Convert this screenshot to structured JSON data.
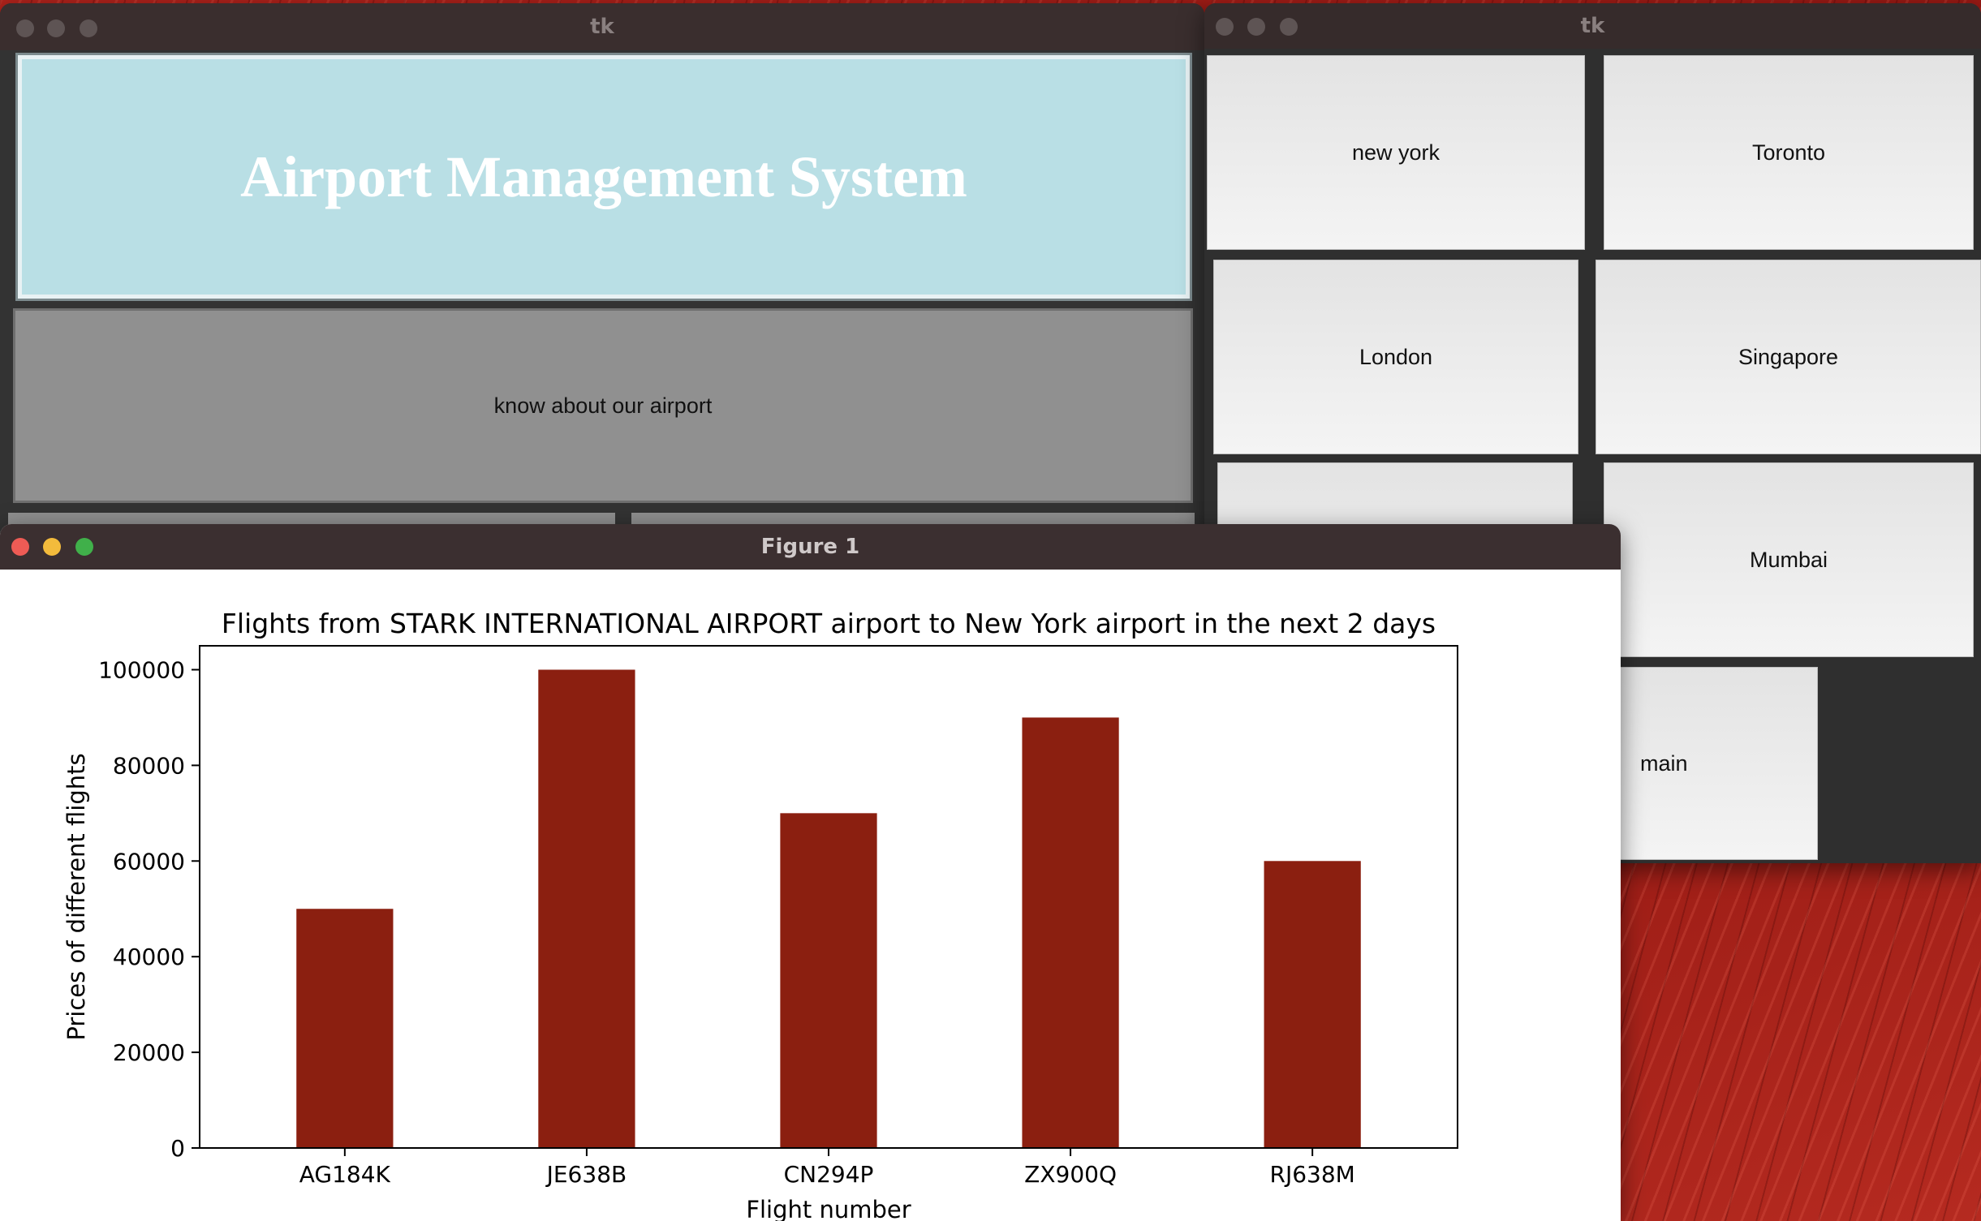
{
  "main_window": {
    "title": "tk",
    "heading": "Airport Management System",
    "know_button": "know about our airport"
  },
  "cities_window": {
    "title": "tk",
    "buttons": [
      "new york",
      "Toronto",
      "London",
      "Singapore",
      "Mumbai",
      "main"
    ]
  },
  "figure_window": {
    "title": "Figure 1"
  },
  "colors": {
    "bar": "#8b1f10",
    "heading_panel": "#b9dfe5",
    "know_button": "#909090"
  },
  "chart_data": {
    "type": "bar",
    "title": "Flights from STARK INTERNATIONAL AIRPORT airport to New York airport in the next 2 days",
    "xlabel": "Flight number",
    "ylabel": "Prices of different flights",
    "categories": [
      "AG184K",
      "JE638B",
      "CN294P",
      "ZX900Q",
      "RJ638M"
    ],
    "values": [
      50000,
      100000,
      70000,
      90000,
      60000
    ],
    "ylim": [
      0,
      105000
    ],
    "yticks": [
      0,
      20000,
      40000,
      60000,
      80000,
      100000
    ],
    "grid": false
  }
}
